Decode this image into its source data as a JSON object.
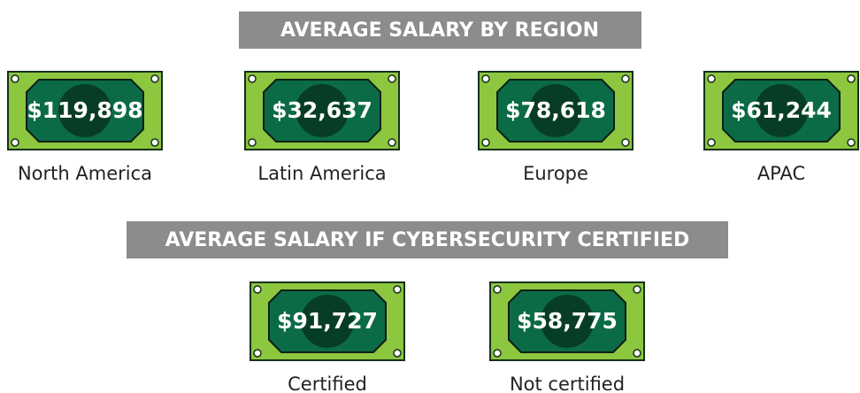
{
  "sections": [
    {
      "title": "AVERAGE SALARY BY REGION",
      "items": [
        {
          "amount": "$119,898",
          "label": "North America"
        },
        {
          "amount": "$32,637",
          "label": "Latin America"
        },
        {
          "amount": "$78,618",
          "label": "Europe"
        },
        {
          "amount": "$61,244",
          "label": "APAC"
        }
      ]
    },
    {
      "title": "AVERAGE SALARY IF CYBERSECURITY CERTIFIED",
      "items": [
        {
          "amount": "$91,727",
          "label": "Certified"
        },
        {
          "amount": "$58,775",
          "label": "Not certified"
        }
      ]
    }
  ]
}
